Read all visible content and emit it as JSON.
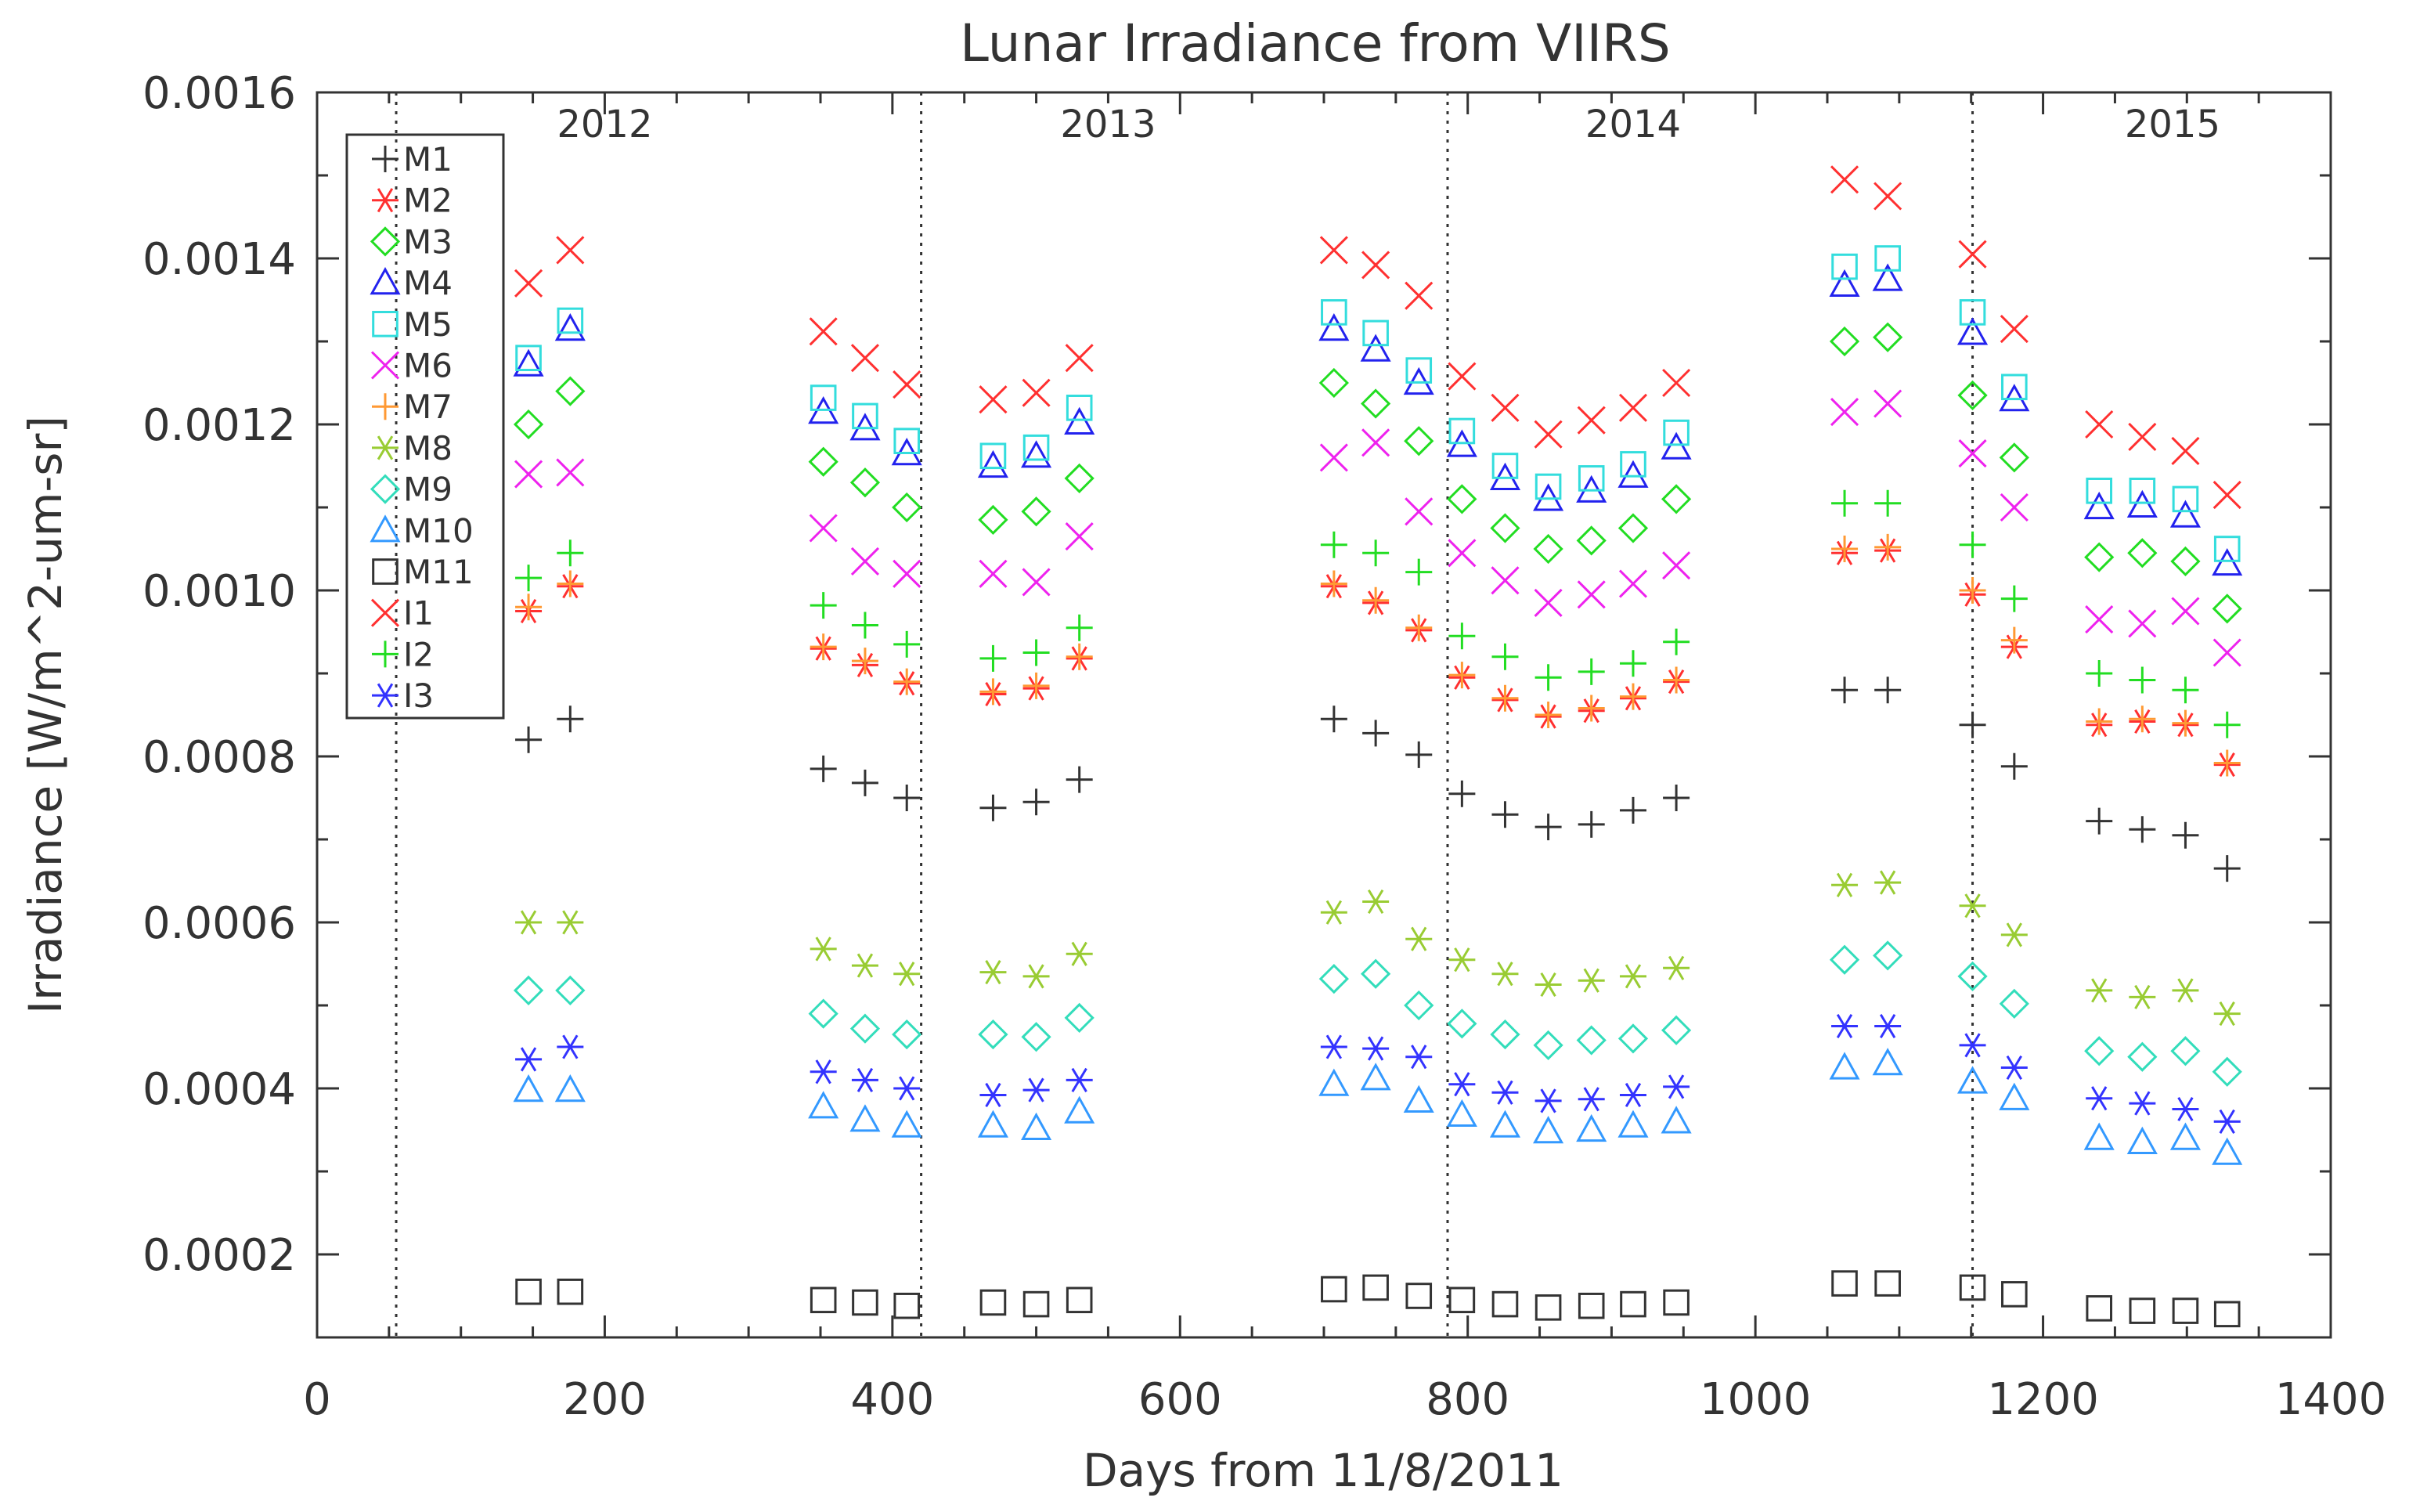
{
  "chart_data": {
    "type": "scatter",
    "title": "Lunar Irradiance from VIIRS",
    "xlabel": "Days from 11/8/2011",
    "ylabel": "Irradiance [W/m^2-um-sr]",
    "xlim": [
      0,
      1400
    ],
    "ylim": [
      0.0001,
      0.0016
    ],
    "xticks": [
      0,
      200,
      400,
      600,
      800,
      1000,
      1200,
      1400
    ],
    "xtick_labels": [
      "0",
      "200",
      "400",
      "600",
      "800",
      "1000",
      "1200",
      "1400"
    ],
    "yticks": [
      0.0002,
      0.0004,
      0.0006,
      0.0008,
      0.001,
      0.0012,
      0.0014,
      0.0016
    ],
    "ytick_labels": [
      "0.0002",
      "0.0004",
      "0.0006",
      "0.0008",
      "0.0010",
      "0.0012",
      "0.0014",
      "0.0016"
    ],
    "legend_position": "top-left",
    "grid": false,
    "year_boundaries": [
      55,
      420,
      786,
      1151
    ],
    "year_labels": [
      {
        "label": "2012",
        "x": 200
      },
      {
        "label": "2013",
        "x": 550
      },
      {
        "label": "2014",
        "x": 915
      },
      {
        "label": "2015",
        "x": 1290
      }
    ],
    "x": [
      147,
      176,
      352,
      381,
      410,
      470,
      500,
      530,
      707,
      736,
      766,
      796,
      826,
      856,
      886,
      915,
      945,
      1062,
      1092,
      1151,
      1180,
      1239,
      1269,
      1299,
      1328
    ],
    "series": [
      {
        "name": "M1",
        "marker": "plus",
        "color": "#333333",
        "values": [
          0.00082,
          0.000845,
          0.000785,
          0.000768,
          0.00075,
          0.000738,
          0.000745,
          0.000772,
          0.000845,
          0.000828,
          0.000802,
          0.000755,
          0.00073,
          0.000715,
          0.000718,
          0.000735,
          0.00075,
          0.00088,
          0.00088,
          0.000838,
          0.000788,
          0.000722,
          0.000712,
          0.000705,
          0.000665
        ]
      },
      {
        "name": "M2",
        "marker": "asterisk",
        "color": "#ff3030",
        "values": [
          0.000975,
          0.001005,
          0.00093,
          0.00091,
          0.000888,
          0.000875,
          0.000882,
          0.000918,
          0.001005,
          0.000985,
          0.000952,
          0.000895,
          0.000868,
          0.000848,
          0.000855,
          0.00087,
          0.00089,
          0.001045,
          0.001048,
          0.000995,
          0.000932,
          0.000838,
          0.000842,
          0.000838,
          0.00079
        ]
      },
      {
        "name": "M3",
        "marker": "diamond",
        "color": "#22dd22",
        "values": [
          0.0012,
          0.00124,
          0.001155,
          0.00113,
          0.0011,
          0.001085,
          0.001095,
          0.001135,
          0.00125,
          0.001225,
          0.00118,
          0.00111,
          0.001075,
          0.00105,
          0.00106,
          0.001075,
          0.00111,
          0.0013,
          0.001305,
          0.001235,
          0.00116,
          0.00104,
          0.001045,
          0.001035,
          0.000978
        ]
      },
      {
        "name": "M4",
        "marker": "triangle",
        "color": "#2222ee",
        "values": [
          0.001272,
          0.001315,
          0.001215,
          0.001195,
          0.001165,
          0.00115,
          0.001162,
          0.001202,
          0.001315,
          0.00129,
          0.00125,
          0.001175,
          0.001135,
          0.00111,
          0.00112,
          0.001138,
          0.001172,
          0.001368,
          0.001375,
          0.00131,
          0.00123,
          0.0011,
          0.001102,
          0.00109,
          0.001032
        ]
      },
      {
        "name": "M5",
        "marker": "square",
        "color": "#33dddd",
        "values": [
          0.00128,
          0.001325,
          0.001232,
          0.00121,
          0.00118,
          0.001162,
          0.001172,
          0.00122,
          0.001335,
          0.00131,
          0.001265,
          0.001192,
          0.00115,
          0.001125,
          0.001135,
          0.001152,
          0.00119,
          0.00139,
          0.0014,
          0.001335,
          0.001245,
          0.00112,
          0.00112,
          0.00111,
          0.00105
        ]
      },
      {
        "name": "M6",
        "marker": "cross",
        "color": "#ee22ee",
        "values": [
          0.00114,
          0.001142,
          0.001075,
          0.001035,
          0.00102,
          0.00102,
          0.00101,
          0.001065,
          0.00116,
          0.001178,
          0.001095,
          0.001045,
          0.001012,
          0.000985,
          0.000995,
          0.001008,
          0.00103,
          0.001215,
          0.001225,
          0.001165,
          0.0011,
          0.000965,
          0.00096,
          0.000975,
          0.000925
        ]
      },
      {
        "name": "M7",
        "marker": "plus",
        "color": "#ff9933",
        "values": [
          0.00098,
          0.001008,
          0.000932,
          0.000915,
          0.00089,
          0.000878,
          0.000885,
          0.00092,
          0.001008,
          0.000988,
          0.000955,
          0.000898,
          0.00087,
          0.00085,
          0.000858,
          0.000872,
          0.000892,
          0.00105,
          0.001052,
          0.001,
          0.00094,
          0.000842,
          0.000845,
          0.00084,
          0.000792
        ]
      },
      {
        "name": "M8",
        "marker": "asterisk",
        "color": "#99cc33",
        "values": [
          0.0006,
          0.0006,
          0.000568,
          0.000548,
          0.000538,
          0.00054,
          0.000535,
          0.000562,
          0.000612,
          0.000625,
          0.00058,
          0.000555,
          0.000538,
          0.000525,
          0.00053,
          0.000535,
          0.000545,
          0.000645,
          0.000648,
          0.00062,
          0.000585,
          0.000518,
          0.00051,
          0.000518,
          0.00049
        ]
      },
      {
        "name": "M9",
        "marker": "diamond",
        "color": "#33ddbb",
        "values": [
          0.000518,
          0.000518,
          0.00049,
          0.000472,
          0.000465,
          0.000465,
          0.000462,
          0.000485,
          0.000532,
          0.000538,
          0.0005,
          0.000478,
          0.000465,
          0.000452,
          0.000458,
          0.00046,
          0.00047,
          0.000555,
          0.00056,
          0.000535,
          0.000502,
          0.000445,
          0.000438,
          0.000445,
          0.00042
        ]
      },
      {
        "name": "M10",
        "marker": "triangle",
        "color": "#3399ff",
        "values": [
          0.000398,
          0.000398,
          0.000378,
          0.000362,
          0.000355,
          0.000355,
          0.000352,
          0.000372,
          0.000405,
          0.000412,
          0.000385,
          0.000368,
          0.000355,
          0.000348,
          0.00035,
          0.000355,
          0.00036,
          0.000425,
          0.00043,
          0.000408,
          0.000388,
          0.00034,
          0.000335,
          0.00034,
          0.000322
        ]
      },
      {
        "name": "M11",
        "marker": "square",
        "color": "#333333",
        "values": [
          0.000155,
          0.000155,
          0.000145,
          0.000142,
          0.000138,
          0.000142,
          0.00014,
          0.000145,
          0.000158,
          0.00016,
          0.00015,
          0.000145,
          0.00014,
          0.000136,
          0.000138,
          0.00014,
          0.000142,
          0.000165,
          0.000165,
          0.00016,
          0.000152,
          0.000135,
          0.000132,
          0.000132,
          0.000128
        ]
      },
      {
        "name": "I1",
        "marker": "cross",
        "color": "#ff3030",
        "values": [
          0.00137,
          0.00141,
          0.001312,
          0.00128,
          0.001248,
          0.00123,
          0.001238,
          0.00128,
          0.00141,
          0.001392,
          0.001355,
          0.001258,
          0.00122,
          0.001188,
          0.001205,
          0.00122,
          0.00125,
          0.001495,
          0.001475,
          0.001405,
          0.001315,
          0.0012,
          0.001185,
          0.001168,
          0.001115
        ]
      },
      {
        "name": "I2",
        "marker": "plus",
        "color": "#22dd22",
        "values": [
          0.001015,
          0.001045,
          0.000982,
          0.000958,
          0.000935,
          0.000918,
          0.000925,
          0.000955,
          0.001055,
          0.001045,
          0.001022,
          0.000945,
          0.00092,
          0.000895,
          0.000902,
          0.000912,
          0.000938,
          0.001105,
          0.001105,
          0.001055,
          0.00099,
          0.0009,
          0.000892,
          0.00088,
          0.000838
        ]
      },
      {
        "name": "I3",
        "marker": "asterisk",
        "color": "#3333ff",
        "values": [
          0.000435,
          0.00045,
          0.00042,
          0.00041,
          0.0004,
          0.000392,
          0.000398,
          0.00041,
          0.00045,
          0.000448,
          0.000438,
          0.000405,
          0.000395,
          0.000385,
          0.000387,
          0.000392,
          0.000402,
          0.000475,
          0.000475,
          0.000452,
          0.000425,
          0.000388,
          0.000382,
          0.000375,
          0.00036
        ]
      }
    ]
  }
}
